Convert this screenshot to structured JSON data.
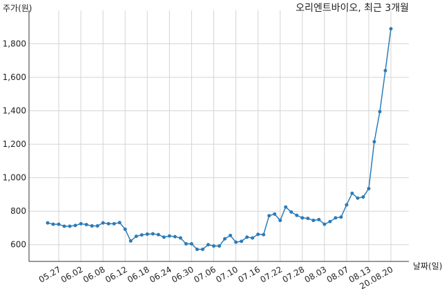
{
  "chart_data": {
    "type": "line",
    "title": "오리엔트바이오, 최근 3개월",
    "y_label": "주가(원)",
    "x_label": "날짜(일)",
    "categories": [
      null,
      null,
      "05.27",
      null,
      null,
      null,
      "06.02",
      null,
      null,
      null,
      "06.08",
      null,
      null,
      null,
      "06.12",
      null,
      null,
      null,
      "06.18",
      null,
      null,
      null,
      "06.24",
      null,
      null,
      null,
      "06.30",
      null,
      null,
      null,
      "07.06",
      null,
      null,
      null,
      "07.10",
      null,
      null,
      null,
      "07.16",
      null,
      null,
      null,
      "07.22",
      null,
      null,
      null,
      "07.28",
      null,
      null,
      null,
      "08.03",
      null,
      null,
      null,
      "08.07",
      null,
      null,
      null,
      "08.13",
      null,
      null,
      null,
      "20.08.20"
    ],
    "series": [
      {
        "color": "#2b7bb9",
        "values": [
          730,
          722,
          722,
          710,
          710,
          715,
          725,
          720,
          712,
          712,
          730,
          725,
          725,
          732,
          692,
          622,
          650,
          658,
          663,
          665,
          660,
          645,
          652,
          648,
          640,
          605,
          605,
          572,
          572,
          600,
          592,
          592,
          635,
          655,
          615,
          620,
          645,
          640,
          662,
          660,
          773,
          783,
          745,
          825,
          795,
          775,
          760,
          757,
          745,
          750,
          722,
          738,
          760,
          765,
          838,
          907,
          878,
          885,
          935,
          1215,
          1395,
          1640,
          1890
        ]
      }
    ],
    "ylim": [
      500,
      2000
    ],
    "yticks": [
      600,
      800,
      {
        "value": 1000,
        "label": "1,000"
      },
      {
        "value": 1200,
        "label": "1,200"
      },
      {
        "value": 1400,
        "label": "1,400"
      },
      {
        "value": 1600,
        "label": "1,600"
      },
      {
        "value": 1800,
        "label": "1,800"
      }
    ],
    "grid": true
  }
}
